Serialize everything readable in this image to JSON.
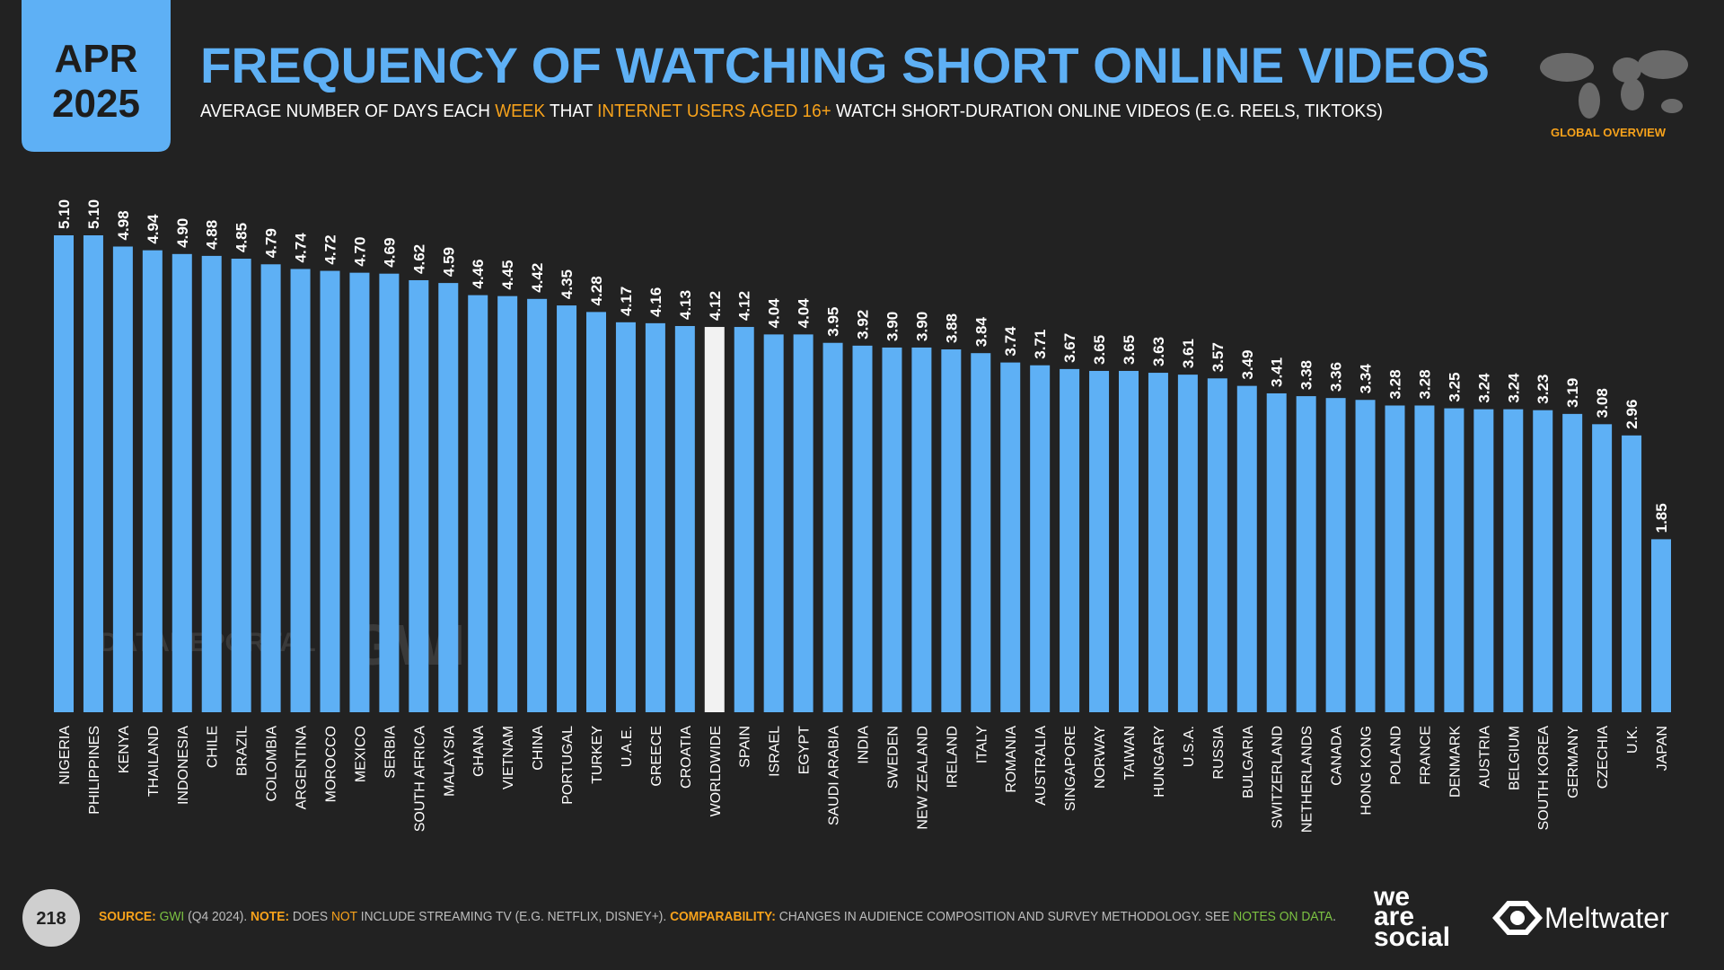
{
  "header": {
    "date_month": "APR",
    "date_year": "2025",
    "title": "FREQUENCY OF WATCHING SHORT ONLINE VIDEOS",
    "subtitle": [
      {
        "text": "AVERAGE NUMBER OF DAYS EACH ",
        "color": "#ffffff"
      },
      {
        "text": "WEEK",
        "color": "#f7a21b"
      },
      {
        "text": " THAT ",
        "color": "#ffffff"
      },
      {
        "text": "INTERNET USERS AGED 16+",
        "color": "#f7a21b"
      },
      {
        "text": " WATCH SHORT-DURATION ONLINE VIDEOS (E.G. REELS, TIKTOKS)",
        "color": "#ffffff"
      }
    ],
    "badge": "GLOBAL OVERVIEW"
  },
  "chart_data": {
    "type": "bar",
    "categories": [
      "NIGERIA",
      "PHILIPPINES",
      "KENYA",
      "THAILAND",
      "INDONESIA",
      "CHILE",
      "BRAZIL",
      "COLOMBIA",
      "ARGENTINA",
      "MOROCCO",
      "MEXICO",
      "SERBIA",
      "SOUTH AFRICA",
      "MALAYSIA",
      "GHANA",
      "VIETNAM",
      "CHINA",
      "PORTUGAL",
      "TURKEY",
      "U.A.E.",
      "GREECE",
      "CROATIA",
      "WORLDWIDE",
      "SPAIN",
      "ISRAEL",
      "EGYPT",
      "SAUDI ARABIA",
      "INDIA",
      "SWEDEN",
      "NEW ZEALAND",
      "IRELAND",
      "ITALY",
      "ROMANIA",
      "AUSTRALIA",
      "SINGAPORE",
      "NORWAY",
      "TAIWAN",
      "HUNGARY",
      "U.S.A.",
      "RUSSIA",
      "BULGARIA",
      "SWITZERLAND",
      "NETHERLANDS",
      "CANADA",
      "HONG KONG",
      "POLAND",
      "FRANCE",
      "DENMARK",
      "AUSTRIA",
      "BELGIUM",
      "SOUTH KOREA",
      "GERMANY",
      "CZECHIA",
      "U.K.",
      "JAPAN"
    ],
    "values": [
      5.1,
      5.1,
      4.98,
      4.94,
      4.9,
      4.88,
      4.85,
      4.79,
      4.74,
      4.72,
      4.7,
      4.69,
      4.62,
      4.59,
      4.46,
      4.45,
      4.42,
      4.35,
      4.28,
      4.17,
      4.16,
      4.13,
      4.12,
      4.12,
      4.04,
      4.04,
      3.95,
      3.92,
      3.9,
      3.9,
      3.88,
      3.84,
      3.74,
      3.71,
      3.67,
      3.65,
      3.65,
      3.63,
      3.61,
      3.57,
      3.49,
      3.41,
      3.38,
      3.36,
      3.34,
      3.28,
      3.28,
      3.25,
      3.24,
      3.24,
      3.23,
      3.19,
      3.08,
      2.96,
      1.85
    ],
    "value_labels": [
      "5.10",
      "5.10",
      "4.98",
      "4.94",
      "4.90",
      "4.88",
      "4.85",
      "4.79",
      "4.74",
      "4.72",
      "4.70",
      "4.69",
      "4.62",
      "4.59",
      "4.46",
      "4.45",
      "4.42",
      "4.35",
      "4.28",
      "4.17",
      "4.16",
      "4.13",
      "4.12",
      "4.12",
      "4.04",
      "4.04",
      "3.95",
      "3.92",
      "3.90",
      "3.90",
      "3.88",
      "3.84",
      "3.74",
      "3.71",
      "3.67",
      "3.65",
      "3.65",
      "3.63",
      "3.61",
      "3.57",
      "3.49",
      "3.41",
      "3.38",
      "3.36",
      "3.34",
      "3.28",
      "3.28",
      "3.25",
      "3.24",
      "3.24",
      "3.23",
      "3.19",
      "3.08",
      "2.96",
      "1.85"
    ],
    "colors": [
      "#5eb0f5",
      "#5eb0f5",
      "#5eb0f5",
      "#5eb0f5",
      "#5eb0f5",
      "#5eb0f5",
      "#5eb0f5",
      "#5eb0f5",
      "#5eb0f5",
      "#5eb0f5",
      "#5eb0f5",
      "#5eb0f5",
      "#5eb0f5",
      "#5eb0f5",
      "#5eb0f5",
      "#5eb0f5",
      "#5eb0f5",
      "#5eb0f5",
      "#5eb0f5",
      "#5eb0f5",
      "#5eb0f5",
      "#5eb0f5",
      "#f2f2f2",
      "#5eb0f5",
      "#5eb0f5",
      "#5eb0f5",
      "#5eb0f5",
      "#5eb0f5",
      "#5eb0f5",
      "#5eb0f5",
      "#5eb0f5",
      "#5eb0f5",
      "#5eb0f5",
      "#5eb0f5",
      "#5eb0f5",
      "#5eb0f5",
      "#5eb0f5",
      "#5eb0f5",
      "#5eb0f5",
      "#5eb0f5",
      "#5eb0f5",
      "#5eb0f5",
      "#5eb0f5",
      "#5eb0f5",
      "#5eb0f5",
      "#5eb0f5",
      "#5eb0f5",
      "#5eb0f5",
      "#5eb0f5",
      "#5eb0f5",
      "#5eb0f5",
      "#5eb0f5",
      "#5eb0f5",
      "#5eb0f5",
      "#5eb0f5"
    ]
  },
  "watermarks": [
    "DATAREPORTAL",
    "GWI."
  ],
  "footer": {
    "page": "218",
    "source": [
      {
        "text": "SOURCE: ",
        "color": "#f7a21b",
        "bold": true
      },
      {
        "text": "GWI",
        "color": "#7cc242",
        "bold": false
      },
      {
        "text": " (Q4 2024). ",
        "color": "#bdbdbd",
        "bold": false
      },
      {
        "text": "NOTE: ",
        "color": "#f7a21b",
        "bold": true
      },
      {
        "text": "DOES ",
        "color": "#bdbdbd",
        "bold": false
      },
      {
        "text": "NOT",
        "color": "#f7a21b",
        "bold": false
      },
      {
        "text": " INCLUDE STREAMING TV (E.G. NETFLIX, DISNEY+). ",
        "color": "#bdbdbd",
        "bold": false
      },
      {
        "text": "COMPARABILITY: ",
        "color": "#f7a21b",
        "bold": true
      },
      {
        "text": "CHANGES IN AUDIENCE COMPOSITION AND SURVEY METHODOLOGY. SEE ",
        "color": "#bdbdbd",
        "bold": false
      },
      {
        "text": "NOTES ON DATA",
        "color": "#7cc242",
        "bold": false
      },
      {
        "text": ".",
        "color": "#bdbdbd",
        "bold": false
      }
    ],
    "brand1": [
      "we",
      "are",
      "social"
    ],
    "brand2": "Meltwater"
  }
}
